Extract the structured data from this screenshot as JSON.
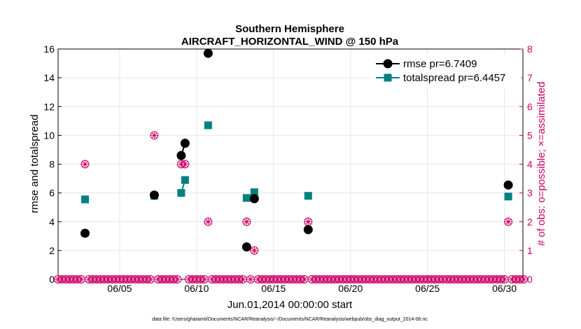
{
  "chart_data": {
    "type": "line",
    "title": "Southern Hemisphere",
    "subtitle": "AIRCRAFT_HORIZONTAL_WIND @ 150 hPa",
    "xlabel": "Jun.01,2014 00:00:00 start",
    "ylabel_left": "rmse and totalspread",
    "ylabel_right": "# of obs: o=possible; ×=assimilated",
    "footnote": "data file: /Users/gharamti/Documents/NCAR/Reanalysis/~/Documents/NCAR/Reanalysis/webpub/obs_diag_output_2014-06.nc",
    "xlim": [
      1,
      31.2
    ],
    "ylim_left": [
      0,
      16
    ],
    "ylim_right": [
      0,
      8
    ],
    "x_ticks": [
      5,
      10,
      15,
      20,
      25,
      30
    ],
    "x_tick_labels": [
      "06/05",
      "06/10",
      "06/15",
      "06/20",
      "06/25",
      "06/30"
    ],
    "y_ticks_left": [
      0,
      2,
      4,
      6,
      8,
      10,
      12,
      14,
      16
    ],
    "y_ticks_right": [
      0,
      1,
      2,
      3,
      4,
      5,
      6,
      7,
      8
    ],
    "colors": {
      "rmse": "#000000",
      "totalspread": "#008080",
      "obs": "#cc0066",
      "grid": "#e6e6e6"
    },
    "series": [
      {
        "name": "rmse",
        "legend": "rmse pr=6.7409",
        "x": [
          2.75,
          7.25,
          9.0,
          9.25,
          10.75,
          13.25,
          13.75,
          17.25,
          30.25
        ],
        "values": [
          3.2,
          5.85,
          8.6,
          9.45,
          15.7,
          2.25,
          5.6,
          3.45,
          6.55
        ]
      },
      {
        "name": "totalspread",
        "legend": "totalspread pr=6.4457",
        "x": [
          2.75,
          7.25,
          9.0,
          9.25,
          10.75,
          13.25,
          13.75,
          17.25,
          30.25
        ],
        "values": [
          5.55,
          5.8,
          6.0,
          6.9,
          10.7,
          5.65,
          6.05,
          5.8,
          5.75
        ]
      }
    ],
    "obs_counts": {
      "x": [
        2.75,
        7.25,
        9.0,
        9.25,
        10.75,
        13.25,
        13.75,
        17.25,
        30.25
      ],
      "possible": [
        4,
        5,
        4,
        4,
        2,
        2,
        1,
        2,
        2
      ],
      "assimilated": [
        4,
        5,
        4,
        4,
        2,
        2,
        1,
        2,
        2
      ]
    },
    "obs_zero_start": 1.0,
    "obs_zero_step": 0.25,
    "obs_zero_end": 31.25
  }
}
